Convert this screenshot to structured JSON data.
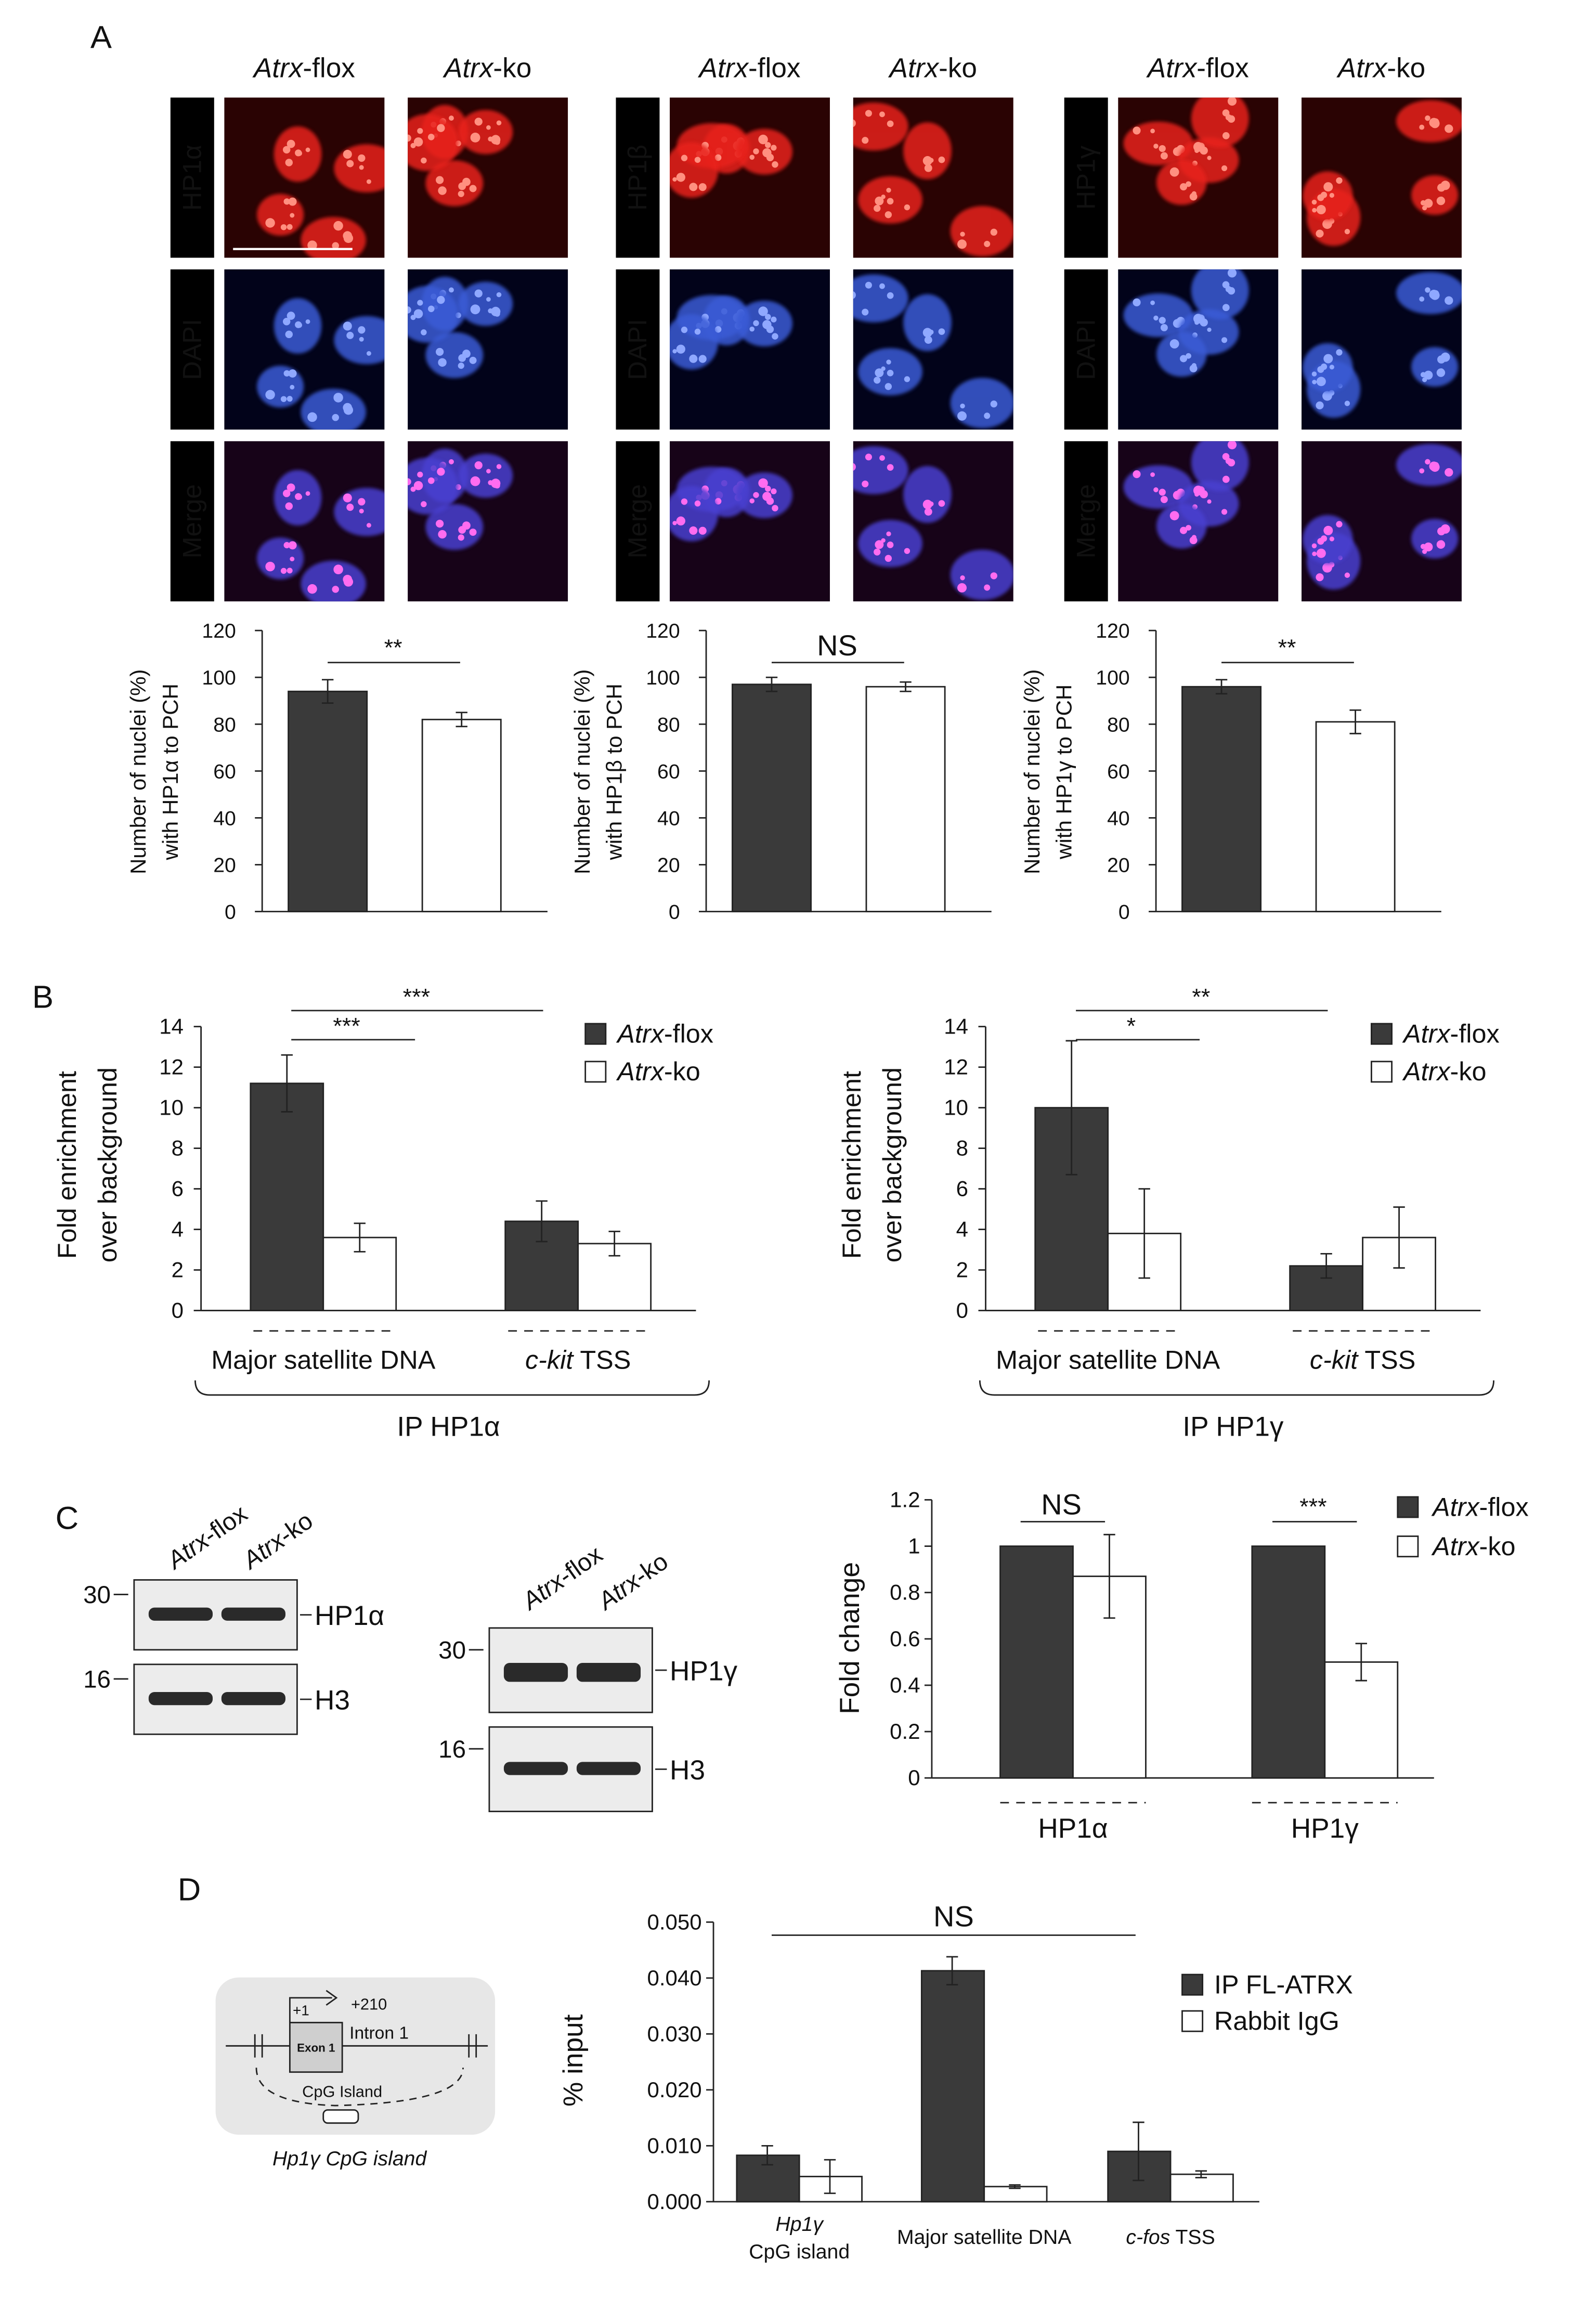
{
  "panelA": {
    "label": "A",
    "groups": [
      {
        "protein": "HP1α",
        "cols": [
          "Atrx-flox",
          "Atrx-ko"
        ],
        "rows": [
          "HP1α",
          "DAPI",
          "Merge"
        ]
      },
      {
        "protein": "HP1β",
        "cols": [
          "Atrx-flox",
          "Atrx-ko"
        ],
        "rows": [
          "HP1β",
          "DAPI",
          "Merge"
        ]
      },
      {
        "protein": "HP1γ",
        "cols": [
          "Atrx-flox",
          "Atrx-ko"
        ],
        "rows": [
          "HP1γ",
          "DAPI",
          "Merge"
        ]
      }
    ],
    "colors": {
      "hp1": "#e8241a",
      "dapi": "#3b5bd6",
      "merge": "#d020c8"
    }
  },
  "panelB": {
    "label": "B",
    "ylabel": [
      "Fold enrichment",
      "over background"
    ],
    "legend": [
      {
        "name": "Atrx-flox",
        "color": "#3a3a3a"
      },
      {
        "name": "Atrx-ko",
        "color": "#ffffff"
      }
    ],
    "charts": [
      {
        "ip": "IP HP1α",
        "sig": [
          "***",
          "***"
        ]
      },
      {
        "ip": "IP HP1γ",
        "sig": [
          "*",
          "**"
        ]
      }
    ]
  },
  "panelC": {
    "label": "C",
    "blots": [
      {
        "lanes": [
          "Atrx-flox",
          "Atrx-ko"
        ],
        "markers": [
          "30",
          "16"
        ],
        "bands": [
          "HP1α",
          "H3"
        ]
      },
      {
        "lanes": [
          "Atrx-flox",
          "Atrx-ko"
        ],
        "markers": [
          "30",
          "16"
        ],
        "bands": [
          "HP1γ",
          "H3"
        ]
      }
    ],
    "legend": [
      {
        "name": "Atrx-flox",
        "color": "#3a3a3a"
      },
      {
        "name": "Atrx-ko",
        "color": "#ffffff"
      }
    ],
    "sig": [
      "NS",
      "***"
    ]
  },
  "panelD": {
    "label": "D",
    "diagram": {
      "plus1": "+1",
      "plus210": "+210",
      "exon": "Exon 1",
      "intron": "Intron 1",
      "cpg": "CpG Island",
      "caption": "Hp1γ CpG island"
    },
    "legend": [
      {
        "name": "IP FL-ATRX",
        "color": "#3a3a3a"
      },
      {
        "name": "Rabbit IgG",
        "color": "#ffffff"
      }
    ],
    "sig": "NS"
  },
  "chart_data": [
    {
      "type": "bar",
      "panel": "A",
      "categories": [
        "Atrx-flox",
        "Atrx-ko"
      ],
      "values": [
        94,
        82
      ],
      "errors": [
        5,
        3
      ],
      "ylabel": [
        "Number of nuclei (%)",
        "with HP1α to PCH"
      ],
      "ylim": [
        0,
        120
      ],
      "yticks": [
        0,
        20,
        40,
        60,
        80,
        100,
        120
      ],
      "sig": "**"
    },
    {
      "type": "bar",
      "panel": "A",
      "categories": [
        "Atrx-flox",
        "Atrx-ko"
      ],
      "values": [
        97,
        96
      ],
      "errors": [
        3,
        2
      ],
      "ylabel": [
        "Number of nuclei (%)",
        "with HP1β to PCH"
      ],
      "ylim": [
        0,
        120
      ],
      "yticks": [
        0,
        20,
        40,
        60,
        80,
        100,
        120
      ],
      "sig": "NS"
    },
    {
      "type": "bar",
      "panel": "A",
      "categories": [
        "Atrx-flox",
        "Atrx-ko"
      ],
      "values": [
        96,
        81
      ],
      "errors": [
        3,
        5
      ],
      "ylabel": [
        "Number of nuclei (%)",
        "with HP1γ to PCH"
      ],
      "ylim": [
        0,
        120
      ],
      "yticks": [
        0,
        20,
        40,
        60,
        80,
        100,
        120
      ],
      "sig": "**"
    },
    {
      "type": "bar",
      "panel": "B",
      "categories": [
        "Major satellite DNA",
        "c-kit TSS"
      ],
      "series": [
        {
          "name": "Atrx-flox",
          "values": [
            11.2,
            4.4
          ],
          "errors": [
            1.4,
            1.0
          ]
        },
        {
          "name": "Atrx-ko",
          "values": [
            3.6,
            3.3
          ],
          "errors": [
            0.7,
            0.6
          ]
        }
      ],
      "ylim": [
        0,
        14
      ],
      "yticks": [
        0,
        2,
        4,
        6,
        8,
        10,
        12,
        14
      ],
      "xlabel": "IP HP1α"
    },
    {
      "type": "bar",
      "panel": "B",
      "categories": [
        "Major satellite DNA",
        "c-kit TSS"
      ],
      "series": [
        {
          "name": "Atrx-flox",
          "values": [
            10.0,
            2.2
          ],
          "errors": [
            3.3,
            0.6
          ]
        },
        {
          "name": "Atrx-ko",
          "values": [
            3.8,
            3.6
          ],
          "errors": [
            2.2,
            1.5
          ]
        }
      ],
      "ylim": [
        0,
        14
      ],
      "yticks": [
        0,
        2,
        4,
        6,
        8,
        10,
        12,
        14
      ],
      "xlabel": "IP HP1γ"
    },
    {
      "type": "bar",
      "panel": "C",
      "categories": [
        "HP1α",
        "HP1γ"
      ],
      "series": [
        {
          "name": "Atrx-flox",
          "values": [
            1.0,
            1.0
          ],
          "errors": [
            0,
            0
          ]
        },
        {
          "name": "Atrx-ko",
          "values": [
            0.87,
            0.5
          ],
          "errors": [
            0.18,
            0.08
          ]
        }
      ],
      "ylabel": "Fold change",
      "ylim": [
        0,
        1.2
      ],
      "yticks": [
        "0",
        "0.2",
        "0.4",
        "0.6",
        "0.8",
        "1",
        "1.2"
      ]
    },
    {
      "type": "bar",
      "panel": "D",
      "categories": [
        "Hp1γ CpG island",
        "Major satellite DNA",
        "c-fos TSS"
      ],
      "series": [
        {
          "name": "IP FL-ATRX",
          "values": [
            0.0083,
            0.0413,
            0.009
          ],
          "errors": [
            0.0017,
            0.0025,
            0.0052
          ]
        },
        {
          "name": "Rabbit IgG",
          "values": [
            0.0045,
            0.0027,
            0.0049
          ],
          "errors": [
            0.003,
            0.0003,
            0.0006
          ]
        }
      ],
      "ylabel": "% input",
      "ylim": [
        0,
        0.05
      ],
      "yticks": [
        "0.000",
        "0.010",
        "0.020",
        "0.030",
        "0.040",
        "0.050"
      ]
    }
  ]
}
